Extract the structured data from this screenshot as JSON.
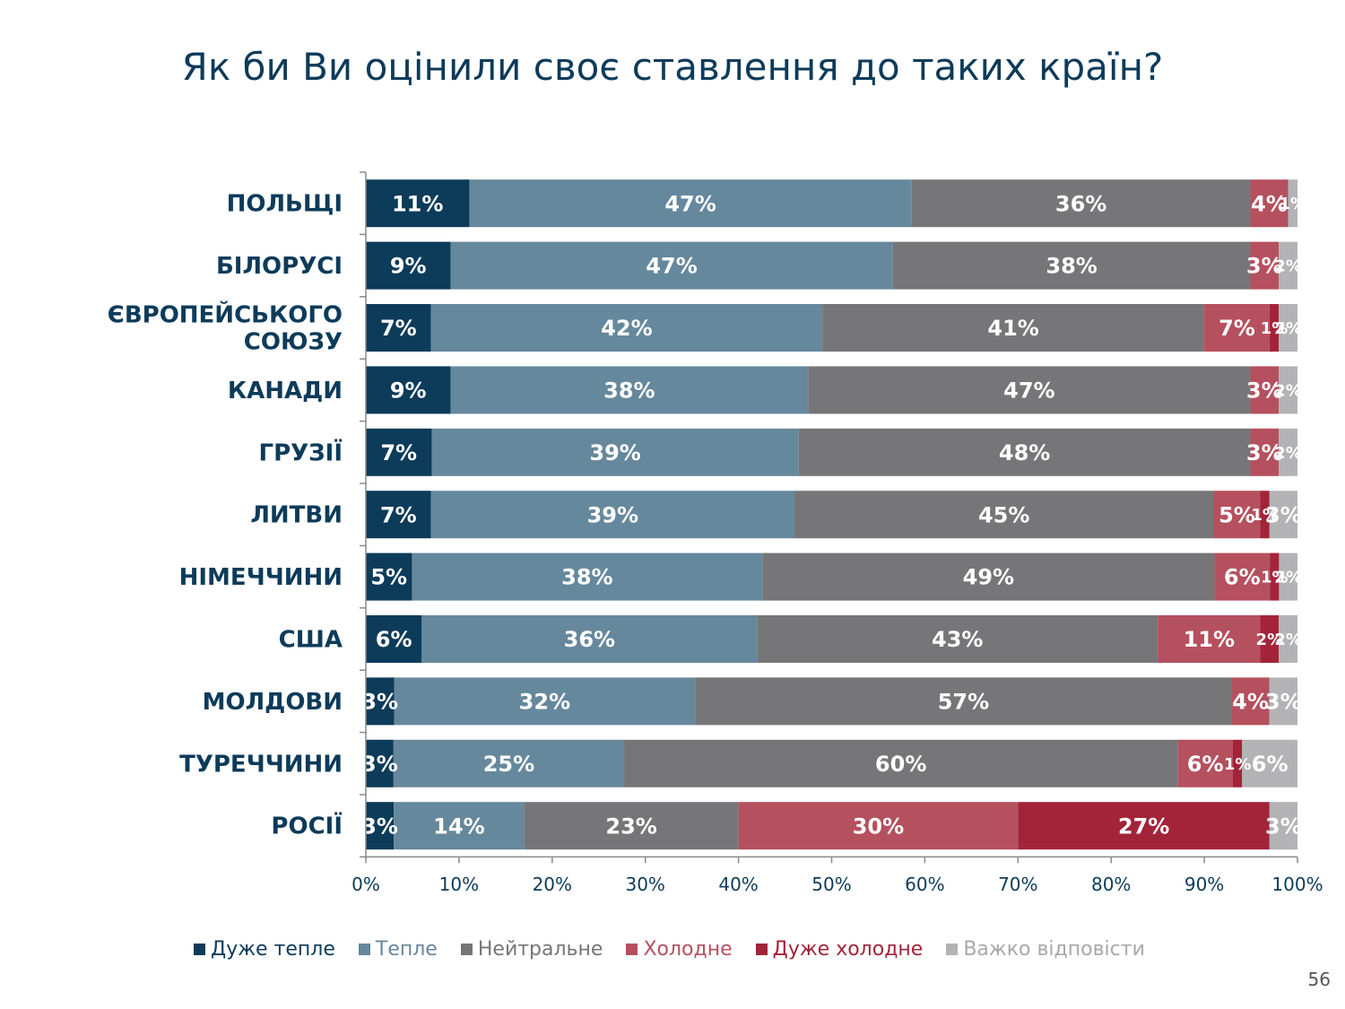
{
  "title": "Як би Ви оцінили своє ставлення до таких країн?",
  "page_number": "56",
  "chart_data": {
    "type": "bar",
    "orientation": "horizontal",
    "stacked": true,
    "title": "Як би Ви оцінили своє ставлення до таких країн?",
    "categories": [
      "ПОЛЬЩІ",
      "БІЛОРУСІ",
      "ЄВРОПЕЙСЬКОГО СОЮЗУ",
      "КАНАДИ",
      "ГРУЗІЇ",
      "ЛИТВИ",
      "НІМЕЧЧИНИ",
      "США",
      "МОЛДОВИ",
      "ТУРЕЧЧИНИ",
      "РОСІЇ"
    ],
    "category_lines": [
      [
        "ПОЛЬЩІ"
      ],
      [
        "БІЛОРУСІ"
      ],
      [
        "ЄВРОПЕЙСЬКОГО",
        "СОЮЗУ"
      ],
      [
        "КАНАДИ"
      ],
      [
        "ГРУЗІЇ"
      ],
      [
        "ЛИТВИ"
      ],
      [
        "НІМЕЧЧИНИ"
      ],
      [
        "США"
      ],
      [
        "МОЛДОВИ"
      ],
      [
        "ТУРЕЧЧИНИ"
      ],
      [
        "РОСІЇ"
      ]
    ],
    "series": [
      {
        "name": "Дуже тепле",
        "color": "#0d3b5a",
        "label_color": "#ffffff",
        "values": [
          11,
          9,
          7,
          9,
          7,
          7,
          5,
          6,
          3,
          3,
          3
        ]
      },
      {
        "name": "Тепле",
        "color": "#66889c",
        "label_color": "#ffffff",
        "values": [
          47,
          47,
          42,
          38,
          39,
          39,
          38,
          36,
          32,
          25,
          14
        ]
      },
      {
        "name": "Нейтральне",
        "color": "#767678",
        "label_color": "#ffffff",
        "values": [
          36,
          38,
          41,
          47,
          48,
          45,
          49,
          43,
          57,
          60,
          23
        ]
      },
      {
        "name": "Холодне",
        "color": "#b5505e",
        "label_color": "#ffffff",
        "values": [
          4,
          3,
          7,
          3,
          3,
          5,
          6,
          11,
          4,
          6,
          30
        ]
      },
      {
        "name": "Дуже холодне",
        "color": "#a32439",
        "label_color": "#ffffff",
        "values": [
          0,
          0,
          1,
          0,
          0,
          1,
          1,
          2,
          0,
          1,
          27
        ]
      },
      {
        "name": "Важко відповісти",
        "color": "#b3b3b5",
        "label_color": "#ffffff",
        "values": [
          1,
          2,
          2,
          2,
          2,
          3,
          2,
          2,
          3,
          6,
          3
        ]
      }
    ],
    "xlim": [
      0,
      100
    ],
    "x_ticks": [
      "0%",
      "10%",
      "20%",
      "30%",
      "40%",
      "50%",
      "60%",
      "70%",
      "80%",
      "90%",
      "100%"
    ],
    "xlabel": "",
    "ylabel": "",
    "legend_position": "bottom",
    "grid": false
  }
}
